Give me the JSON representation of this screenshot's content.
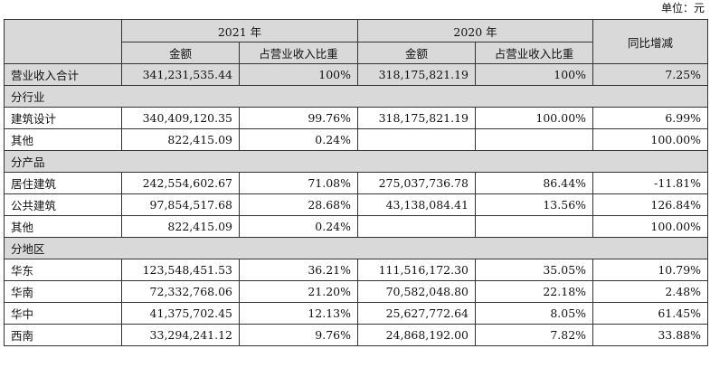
{
  "unit_label": "单位：元",
  "header": {
    "year_2021": "2021 年",
    "year_2020": "2020 年",
    "amount": "金额",
    "ratio": "占营业收入比重",
    "yoy": "同比增减"
  },
  "rows": [
    {
      "label": "营业收入合计",
      "a2021": "341,231,535.44",
      "r2021": "100%",
      "a2020": "318,175,821.19",
      "r2020": "100%",
      "yoy": "7.25%"
    },
    {
      "label": "建筑设计",
      "a2021": "340,409,120.35",
      "r2021": "99.76%",
      "a2020": "318,175,821.19",
      "r2020": "100.00%",
      "yoy": "6.99%"
    },
    {
      "label": "其他",
      "a2021": "822,415.09",
      "r2021": "0.24%",
      "a2020": "",
      "r2020": "",
      "yoy": "100.00%"
    },
    {
      "label": "居住建筑",
      "a2021": "242,554,602.67",
      "r2021": "71.08%",
      "a2020": "275,037,736.78",
      "r2020": "86.44%",
      "yoy": "-11.81%"
    },
    {
      "label": "公共建筑",
      "a2021": "97,854,517.68",
      "r2021": "28.68%",
      "a2020": "43,138,084.41",
      "r2020": "13.56%",
      "yoy": "126.84%"
    },
    {
      "label": "其他",
      "a2021": "822,415.09",
      "r2021": "0.24%",
      "a2020": "",
      "r2020": "",
      "yoy": "100.00%"
    },
    {
      "label": "华东",
      "a2021": "123,548,451.53",
      "r2021": "36.21%",
      "a2020": "111,516,172.30",
      "r2020": "35.05%",
      "yoy": "10.79%"
    },
    {
      "label": "华南",
      "a2021": "72,332,768.06",
      "r2021": "21.20%",
      "a2020": "70,582,048.80",
      "r2020": "22.18%",
      "yoy": "2.48%"
    },
    {
      "label": "华中",
      "a2021": "41,375,702.45",
      "r2021": "12.13%",
      "a2020": "25,627,772.64",
      "r2020": "8.05%",
      "yoy": "61.45%"
    },
    {
      "label": "西南",
      "a2021": "33,294,241.12",
      "r2021": "9.76%",
      "a2020": "24,868,192.00",
      "r2020": "7.82%",
      "yoy": "33.88%"
    }
  ],
  "sections": {
    "by_industry": "分行业",
    "by_product": "分产品",
    "by_region": "分地区"
  },
  "colors": {
    "header_bg": "#d9d9d9",
    "border": "#333333"
  }
}
